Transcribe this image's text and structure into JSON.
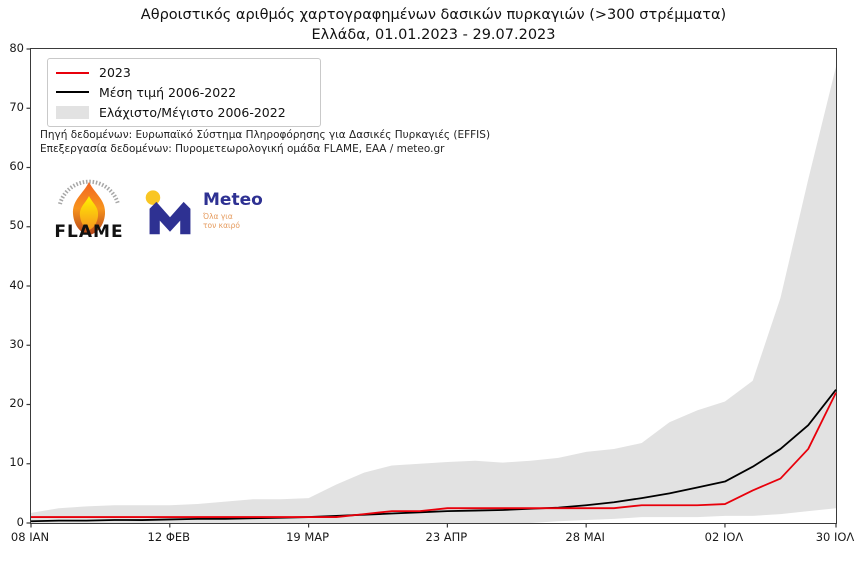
{
  "title": "Αθροιστικός αριθμός χαρτογραφημένων δασικών πυρκαγιών (>300 στρέμματα)",
  "subtitle": "Ελλάδα, 01.01.2023 - 29.07.2023",
  "legend": {
    "items": [
      {
        "label": "2023",
        "type": "line",
        "color": "#e8000b"
      },
      {
        "label": "Μέση τιμή 2006-2022",
        "type": "line",
        "color": "#000000"
      },
      {
        "label": "Ελάχιστο/Μέγιστο 2006-2022",
        "type": "patch",
        "color": "#e2e2e2"
      }
    ]
  },
  "source": {
    "line1": "Πηγή δεδομένων: Ευρωπαϊκό Σύστημα Πληροφόρησης για Δασικές Πυρκαγιές (EFFIS)",
    "line2": "Επεξεργασία δεδομένων: Πυρομετεωρολογική ομάδα FLAME, ΕΑΑ / meteo.gr"
  },
  "logos": {
    "flame": {
      "text": "FLAME"
    },
    "meteo": {
      "name": "Meteo",
      "tagline_line1": "Όλα για",
      "tagline_line2": "τον καιρό",
      "blue": "#2e3192",
      "yellow": "#f9c623",
      "tagline_color": "#e59a5c"
    }
  },
  "chart_data": {
    "type": "line",
    "title": "Αθροιστικός αριθμός χαρτογραφημένων δασικών πυρκαγιών (>300 στρέμματα) — Ελλάδα, 01.01.2023 - 29.07.2023",
    "xlabel": "",
    "ylabel": "",
    "ylim": [
      0,
      80
    ],
    "y_ticks": [
      0,
      10,
      20,
      30,
      40,
      50,
      60,
      70,
      80
    ],
    "n_points": 30,
    "x_tick_labels": [
      "08 ΙΑΝ",
      "12 ΦΕΒ",
      "19 ΜΑΡ",
      "23 ΑΠΡ",
      "28 ΜΑΙ",
      "02 ΙΟΛ",
      "30 ΙΟΛ"
    ],
    "x_tick_positions": [
      0,
      5,
      10,
      15,
      20,
      25,
      29
    ],
    "grid": false,
    "legend_position": "upper-left",
    "series": [
      {
        "name": "2023",
        "color": "#e8000b",
        "width": 1.8,
        "values": [
          1,
          1,
          1,
          1,
          1,
          1,
          1,
          1,
          1,
          1,
          1,
          1,
          1.5,
          2,
          2,
          2.5,
          2.5,
          2.5,
          2.5,
          2.5,
          2.5,
          2.5,
          3,
          3,
          3,
          3.2,
          5.5,
          7.5,
          12.5,
          22
        ]
      },
      {
        "name": "Μέση τιμή 2006-2022",
        "color": "#000000",
        "width": 1.8,
        "values": [
          0.3,
          0.4,
          0.4,
          0.5,
          0.5,
          0.6,
          0.7,
          0.7,
          0.8,
          0.9,
          1,
          1.2,
          1.4,
          1.6,
          1.8,
          2,
          2.1,
          2.2,
          2.4,
          2.6,
          3,
          3.5,
          4.2,
          5,
          6,
          7,
          9.5,
          12.5,
          16.5,
          22.5
        ]
      }
    ],
    "band": {
      "name": "Ελάχιστο/Μέγιστο 2006-2022",
      "color": "#e2e2e2",
      "max": [
        1.7,
        2.5,
        2.8,
        3,
        3,
        3,
        3.2,
        3.6,
        4,
        4,
        4.2,
        6.5,
        8.5,
        9.7,
        10,
        10.3,
        10.5,
        10.2,
        10.5,
        11,
        12,
        12.5,
        13.5,
        17,
        19,
        20.5,
        24,
        38,
        58,
        77
      ],
      "min": [
        0,
        0,
        0,
        0,
        0,
        0,
        0,
        0,
        0,
        0,
        0,
        0,
        0,
        0,
        0,
        0,
        0,
        0,
        0,
        0.3,
        0.5,
        0.7,
        1,
        1,
        1,
        1.2,
        1.2,
        1.5,
        2,
        2.5
      ]
    }
  }
}
